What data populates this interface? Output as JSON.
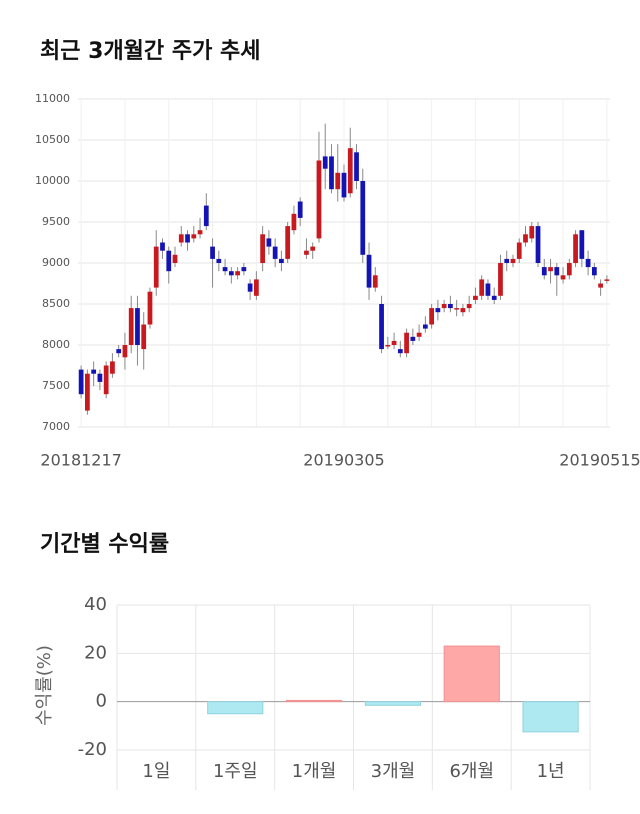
{
  "chart_data": [
    {
      "type": "candlestick",
      "title": "최근 3개월간 주가 추세",
      "categories": [
        "20181217",
        null,
        null,
        null,
        null,
        null,
        null,
        null,
        null,
        null,
        null,
        null,
        null,
        null,
        null,
        null,
        null,
        null,
        null,
        null,
        null,
        null,
        null,
        null,
        null,
        null,
        null,
        null,
        null,
        null,
        null,
        null,
        null,
        null,
        null,
        null,
        null,
        null,
        null,
        null,
        null,
        null,
        "20190305",
        null,
        null,
        null,
        null,
        null,
        null,
        null,
        null,
        null,
        null,
        null,
        null,
        null,
        null,
        null,
        null,
        null,
        null,
        null,
        null,
        null,
        null,
        null,
        null,
        null,
        null,
        null,
        null,
        null,
        null,
        null,
        null,
        null,
        null,
        null,
        null,
        null,
        null,
        null,
        null,
        null,
        "20190515"
      ],
      "open": [
        7700,
        7200,
        7700,
        7650,
        7400,
        7650,
        7950,
        7850,
        8000,
        8450,
        7950,
        8250,
        8700,
        9250,
        9150,
        9000,
        9250,
        9350,
        9300,
        9350,
        9700,
        9200,
        9050,
        8950,
        8900,
        8850,
        8950,
        8750,
        8600,
        9000,
        9300,
        9200,
        9050,
        9050,
        9400,
        9750,
        9100,
        9150,
        9300,
        10300,
        10300,
        9900,
        10100,
        9850,
        10350,
        10000,
        9100,
        8700,
        8500,
        8000,
        8000,
        7950,
        7900,
        8100,
        8100,
        8250,
        8250,
        8450,
        8450,
        8500,
        8450,
        8400,
        8450,
        8550,
        8600,
        8750,
        8600,
        8600,
        9050,
        9000,
        9050,
        9250,
        9300,
        9450,
        8950,
        8900,
        8950,
        8800,
        8850,
        9000,
        9400,
        9050,
        8950,
        8700,
        8800
      ],
      "high": [
        7750,
        7700,
        7800,
        7700,
        7800,
        7900,
        8000,
        8150,
        8600,
        8600,
        8400,
        8700,
        9400,
        9300,
        9200,
        9200,
        9450,
        9400,
        9450,
        9550,
        9850,
        9300,
        9150,
        9050,
        8950,
        8950,
        9000,
        8800,
        8900,
        9450,
        9400,
        9300,
        9150,
        9500,
        9700,
        9800,
        9300,
        9250,
        10600,
        10700,
        10450,
        10450,
        10200,
        10650,
        10450,
        10150,
        9250,
        8950,
        8600,
        8100,
        8150,
        8050,
        8200,
        8200,
        8250,
        8350,
        8500,
        8550,
        8550,
        8600,
        8550,
        8500,
        8600,
        8700,
        8850,
        8800,
        8700,
        9100,
        9150,
        9100,
        9300,
        9450,
        9500,
        9500,
        9050,
        9050,
        9000,
        8950,
        9050,
        9400,
        9400,
        9150,
        9000,
        8800,
        8850
      ],
      "low": [
        7350,
        7150,
        7500,
        7450,
        7350,
        7600,
        7850,
        7700,
        7900,
        7750,
        7700,
        8200,
        8600,
        9050,
        8750,
        8950,
        9200,
        9150,
        9250,
        9300,
        9400,
        8700,
        8900,
        8850,
        8750,
        8800,
        8850,
        8550,
        8550,
        8900,
        9100,
        8950,
        8900,
        9000,
        9350,
        9450,
        9050,
        9050,
        9250,
        9900,
        9850,
        9750,
        9750,
        9800,
        9900,
        9000,
        8550,
        8650,
        7900,
        7950,
        7950,
        7850,
        7850,
        8000,
        8050,
        8150,
        8200,
        8300,
        8400,
        8400,
        8350,
        8350,
        8400,
        8500,
        8550,
        8550,
        8500,
        8550,
        8900,
        8950,
        9000,
        9200,
        9250,
        8950,
        8800,
        8750,
        8600,
        8750,
        8800,
        8950,
        8950,
        8850,
        8800,
        8600,
        8750
      ],
      "close": [
        7400,
        7650,
        7650,
        7550,
        7750,
        7800,
        7900,
        8000,
        8450,
        8000,
        8250,
        8650,
        9200,
        9150,
        8900,
        9100,
        9350,
        9250,
        9350,
        9400,
        9450,
        9050,
        9000,
        8900,
        8850,
        8900,
        8900,
        8650,
        8800,
        9350,
        9200,
        9050,
        9000,
        9450,
        9600,
        9550,
        9150,
        9200,
        10250,
        10150,
        9900,
        10100,
        9800,
        10400,
        10000,
        9100,
        8700,
        8850,
        7950,
        8000,
        8050,
        7900,
        8150,
        8050,
        8150,
        8200,
        8450,
        8400,
        8500,
        8450,
        8450,
        8450,
        8500,
        8600,
        8800,
        8600,
        8550,
        9000,
        9000,
        9050,
        9250,
        9350,
        9450,
        9000,
        8850,
        8950,
        8850,
        8850,
        9000,
        9350,
        9050,
        8950,
        8850,
        8750,
        8800
      ],
      "up_color": "#c8191e",
      "down_color": "#1414b4",
      "ylim": [
        7000,
        11000
      ],
      "yticks": [
        7000,
        7500,
        8000,
        8500,
        9000,
        9500,
        10000,
        10500,
        11000
      ],
      "grid": true
    },
    {
      "type": "bar",
      "title": "기간별 수익률",
      "ylabel": "수익률(%)",
      "categories": [
        "1일",
        "1주일",
        "1개월",
        "3개월",
        "6개월",
        "1년"
      ],
      "values": [
        0,
        -5,
        0.5,
        -1.5,
        23,
        -12.5
      ],
      "positive_color": "#ffa8a8",
      "negative_color": "#aee9f2",
      "ylim": [
        -20,
        40
      ],
      "yticks": [
        -20,
        0,
        20,
        40
      ],
      "grid": true
    }
  ]
}
